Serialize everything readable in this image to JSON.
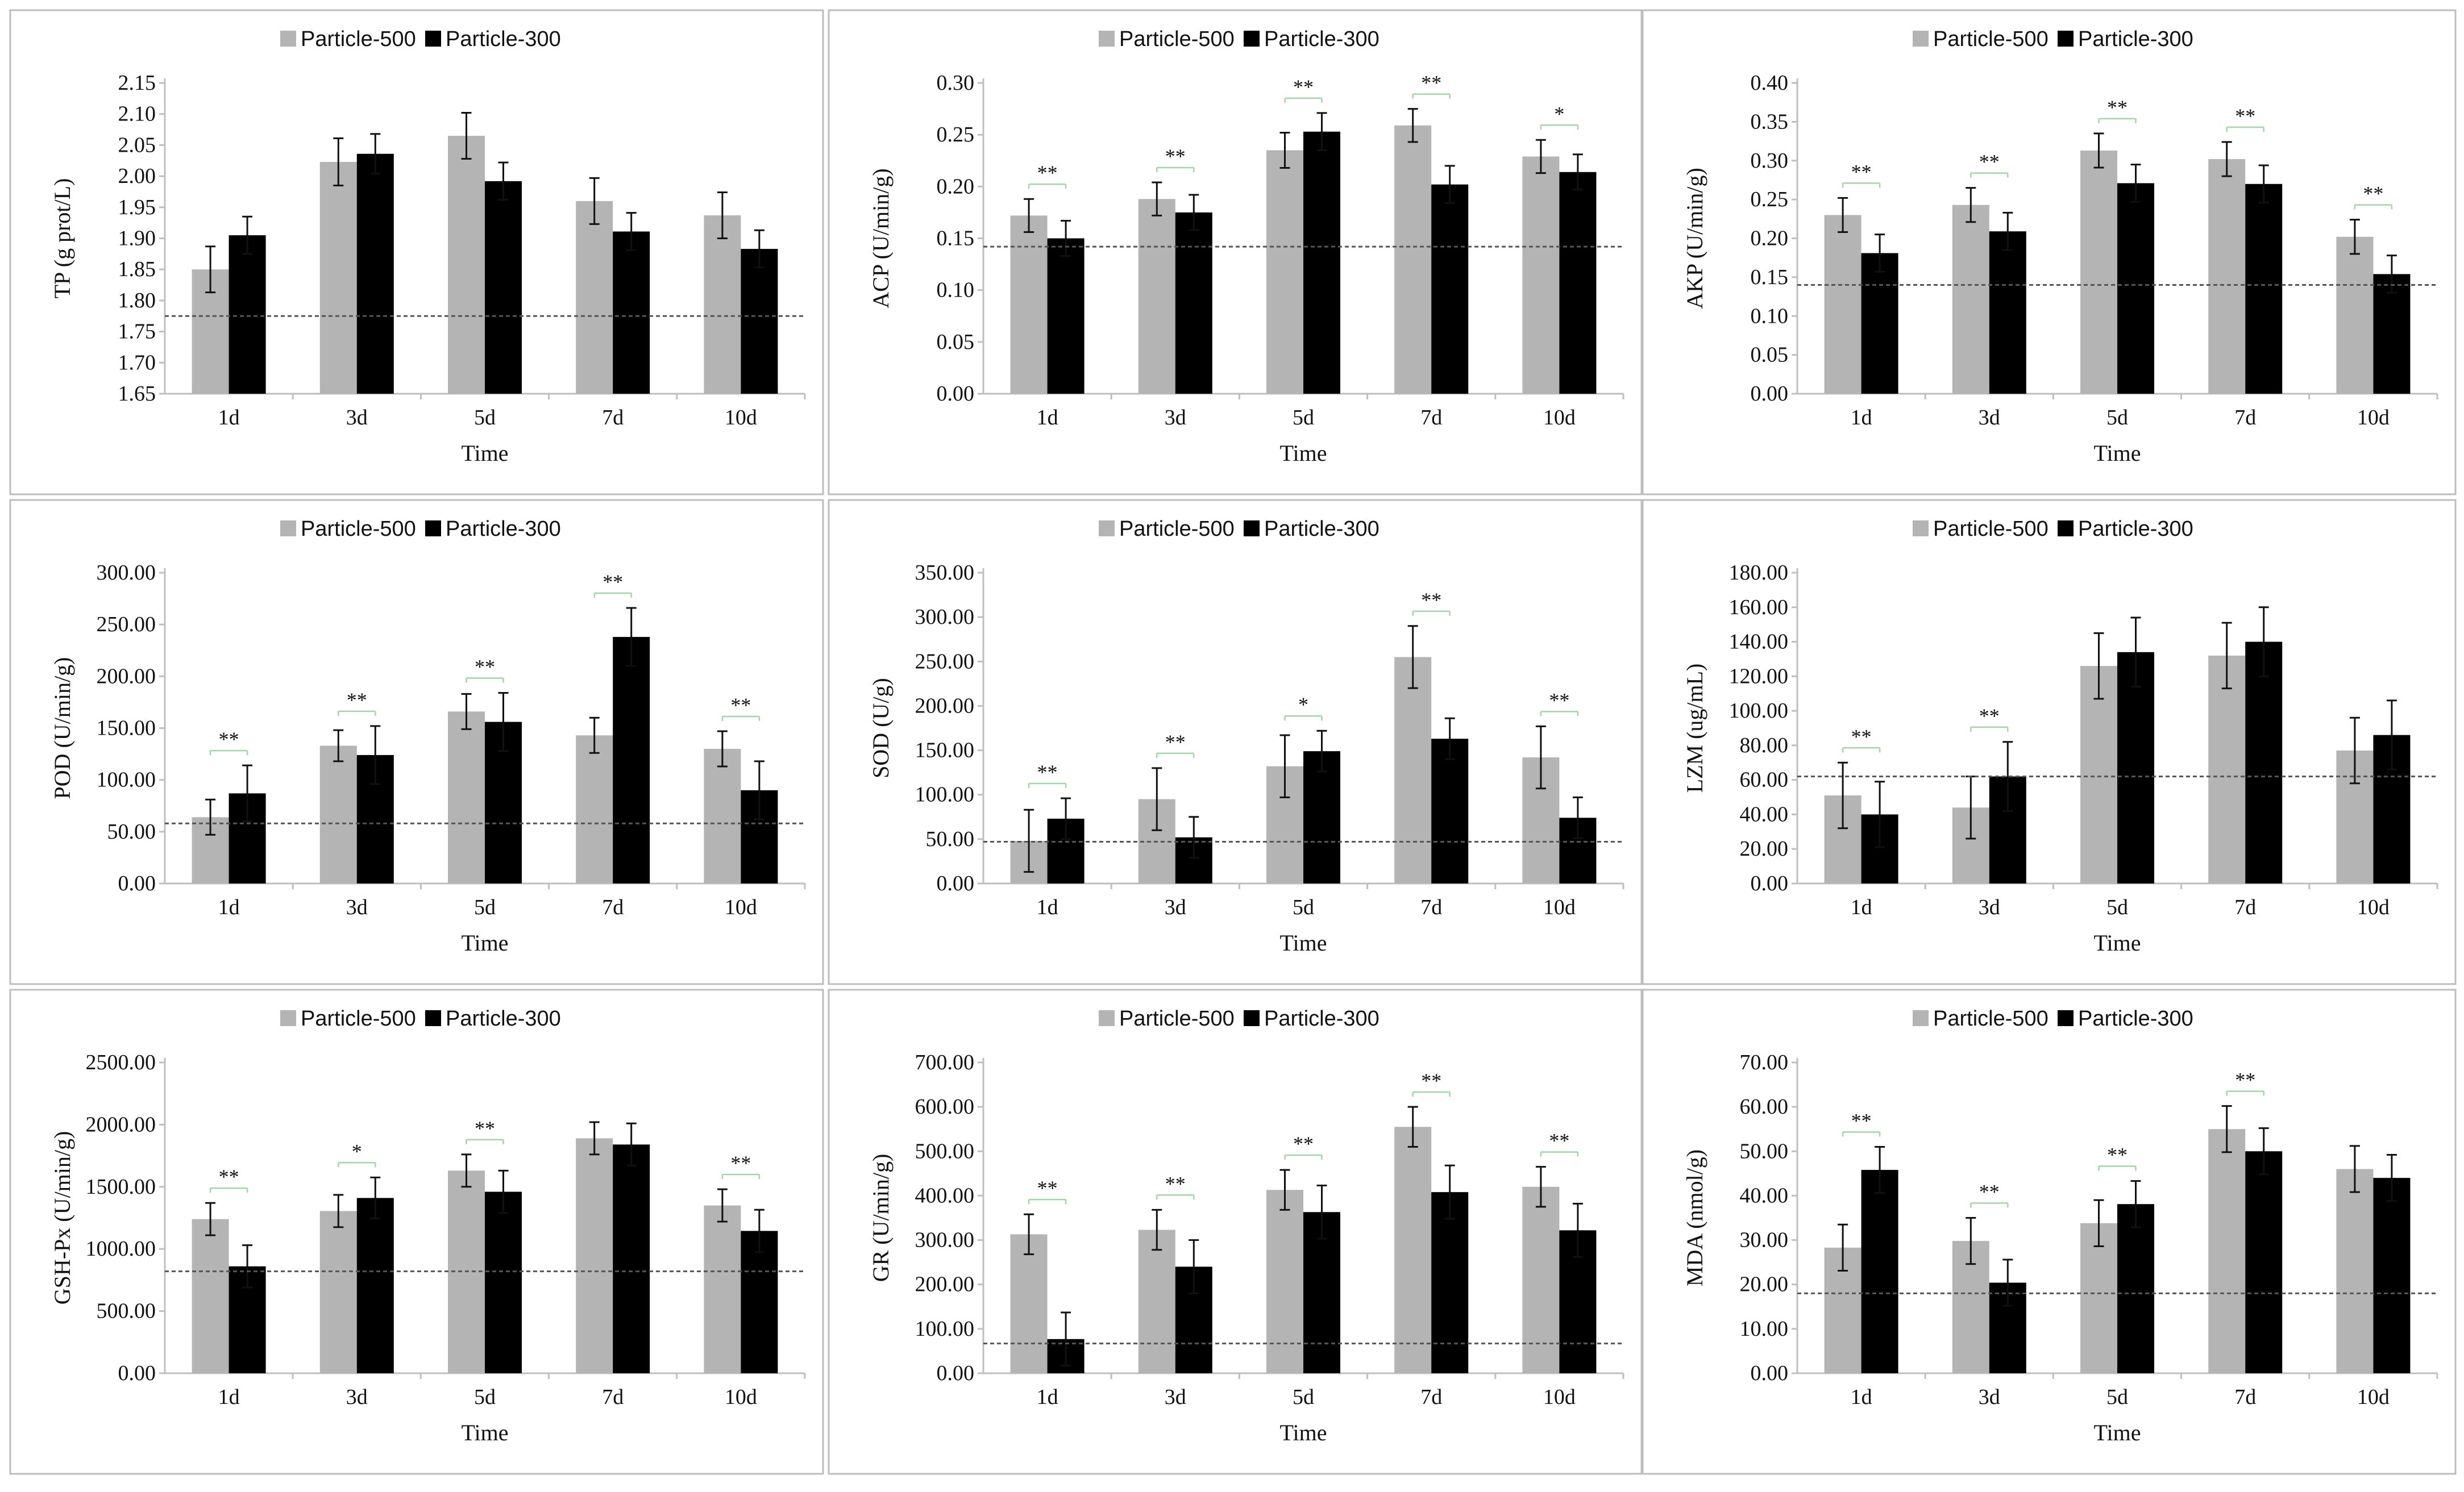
{
  "colors": {
    "series_1": "#b4b4b4",
    "series_2": "#000000",
    "significance": "#9fd8a8",
    "control_line": "#555555"
  },
  "chart_data": [
    {
      "type": "bar",
      "ylabel": "TP (g prot/L)",
      "xlabel": "Time",
      "categories": [
        "1d",
        "3d",
        "5d",
        "7d",
        "10d"
      ],
      "yticks": [
        "1.65",
        "1.70",
        "1.75",
        "1.80",
        "1.85",
        "1.90",
        "1.95",
        "2.00",
        "2.05",
        "2.10",
        "2.15"
      ],
      "ylim": [
        1.65,
        2.15
      ],
      "control": 1.775,
      "series": [
        {
          "name": "Particle-500",
          "values": [
            1.85,
            2.023,
            2.065,
            1.96,
            1.937
          ],
          "errors": [
            0.037,
            0.038,
            0.037,
            0.037,
            0.037
          ]
        },
        {
          "name": "Particle-300",
          "values": [
            1.905,
            2.036,
            1.992,
            1.911,
            1.883
          ],
          "errors": [
            0.03,
            0.032,
            0.03,
            0.03,
            0.03
          ]
        }
      ],
      "significance": [
        "",
        "",
        "",
        "",
        ""
      ]
    },
    {
      "type": "bar",
      "ylabel": "ACP (U/min/g)",
      "xlabel": "Time",
      "categories": [
        "1d",
        "3d",
        "5d",
        "7d",
        "10d"
      ],
      "yticks": [
        "0.00",
        "0.05",
        "0.10",
        "0.15",
        "0.20",
        "0.25",
        "0.30"
      ],
      "ylim": [
        0,
        0.3
      ],
      "control": 0.142,
      "series": [
        {
          "name": "Particle-500",
          "values": [
            0.172,
            0.188,
            0.235,
            0.259,
            0.229
          ],
          "errors": [
            0.016,
            0.016,
            0.017,
            0.016,
            0.016
          ]
        },
        {
          "name": "Particle-300",
          "values": [
            0.15,
            0.175,
            0.253,
            0.202,
            0.214
          ],
          "errors": [
            0.017,
            0.017,
            0.018,
            0.018,
            0.017
          ]
        }
      ],
      "significance": [
        "**",
        "**",
        "**",
        "**",
        "*"
      ]
    },
    {
      "type": "bar",
      "ylabel": "AKP (U/min/g)",
      "xlabel": "Time",
      "categories": [
        "1d",
        "3d",
        "5d",
        "7d",
        "10d"
      ],
      "yticks": [
        "0.00",
        "0.05",
        "0.10",
        "0.15",
        "0.20",
        "0.25",
        "0.30",
        "0.35",
        "0.40"
      ],
      "ylim": [
        0,
        0.4
      ],
      "control": 0.14,
      "series": [
        {
          "name": "Particle-500",
          "values": [
            0.23,
            0.243,
            0.313,
            0.302,
            0.202
          ],
          "errors": [
            0.022,
            0.022,
            0.022,
            0.022,
            0.022
          ]
        },
        {
          "name": "Particle-300",
          "values": [
            0.181,
            0.209,
            0.271,
            0.27,
            0.154
          ],
          "errors": [
            0.024,
            0.024,
            0.024,
            0.024,
            0.024
          ]
        }
      ],
      "significance": [
        "**",
        "**",
        "**",
        "**",
        "**"
      ]
    },
    {
      "type": "bar",
      "ylabel": "POD (U/min/g)",
      "xlabel": "Time",
      "categories": [
        "1d",
        "3d",
        "5d",
        "7d",
        "10d"
      ],
      "yticks": [
        "0.00",
        "50.00",
        "100.00",
        "150.00",
        "200.00",
        "250.00",
        "300.00"
      ],
      "ylim": [
        0,
        300
      ],
      "control": 58,
      "series": [
        {
          "name": "Particle-500",
          "values": [
            64,
            133,
            166,
            143,
            130
          ],
          "errors": [
            17,
            15,
            17,
            17,
            17
          ]
        },
        {
          "name": "Particle-300",
          "values": [
            87,
            124,
            156,
            238,
            90
          ],
          "errors": [
            27,
            28,
            28,
            28,
            28
          ]
        }
      ],
      "significance": [
        "**",
        "**",
        "**",
        "**",
        "**"
      ]
    },
    {
      "type": "bar",
      "ylabel": "SOD (U/g)",
      "xlabel": "Time",
      "categories": [
        "1d",
        "3d",
        "5d",
        "7d",
        "10d"
      ],
      "yticks": [
        "0.00",
        "50.00",
        "100.00",
        "150.00",
        "200.00",
        "250.00",
        "300.00",
        "350.00"
      ],
      "ylim": [
        0,
        350
      ],
      "control": 47,
      "series": [
        {
          "name": "Particle-500",
          "values": [
            48,
            95,
            132,
            255,
            142
          ],
          "errors": [
            35,
            35,
            35,
            35,
            35
          ]
        },
        {
          "name": "Particle-300",
          "values": [
            73,
            52,
            149,
            163,
            74
          ],
          "errors": [
            23,
            23,
            23,
            23,
            23
          ]
        }
      ],
      "significance": [
        "**",
        "**",
        "*",
        "**",
        "**"
      ]
    },
    {
      "type": "bar",
      "ylabel": "LZM (ug/mL)",
      "xlabel": "Time",
      "categories": [
        "1d",
        "3d",
        "5d",
        "7d",
        "10d"
      ],
      "yticks": [
        "0.00",
        "20.00",
        "40.00",
        "60.00",
        "80.00",
        "100.00",
        "120.00",
        "140.00",
        "160.00",
        "180.00"
      ],
      "ylim": [
        0,
        180
      ],
      "control": 62,
      "series": [
        {
          "name": "Particle-500",
          "values": [
            51,
            44,
            126,
            132,
            77
          ],
          "errors": [
            19,
            18,
            19,
            19,
            19
          ]
        },
        {
          "name": "Particle-300",
          "values": [
            40,
            62,
            134,
            140,
            86
          ],
          "errors": [
            19,
            20,
            20,
            20,
            20
          ]
        }
      ],
      "significance": [
        "**",
        "**",
        "",
        "",
        ""
      ]
    },
    {
      "type": "bar",
      "ylabel": "GSH-Px (U/min/g)",
      "xlabel": "Time",
      "categories": [
        "1d",
        "3d",
        "5d",
        "7d",
        "10d"
      ],
      "yticks": [
        "0.00",
        "500.00",
        "1000.00",
        "1500.00",
        "2000.00",
        "2500.00"
      ],
      "ylim": [
        0,
        2500
      ],
      "control": 820,
      "series": [
        {
          "name": "Particle-500",
          "values": [
            1240,
            1305,
            1630,
            1890,
            1350
          ],
          "errors": [
            130,
            130,
            130,
            130,
            130
          ]
        },
        {
          "name": "Particle-300",
          "values": [
            860,
            1410,
            1460,
            1840,
            1145
          ],
          "errors": [
            170,
            165,
            170,
            170,
            170
          ]
        }
      ],
      "significance": [
        "**",
        "*",
        "**",
        "",
        "**"
      ]
    },
    {
      "type": "bar",
      "ylabel": "GR (U/min/g)",
      "xlabel": "Time",
      "categories": [
        "1d",
        "3d",
        "5d",
        "7d",
        "10d"
      ],
      "yticks": [
        "0.00",
        "100.00",
        "200.00",
        "300.00",
        "400.00",
        "500.00",
        "600.00",
        "700.00"
      ],
      "ylim": [
        0,
        700
      ],
      "control": 67,
      "series": [
        {
          "name": "Particle-500",
          "values": [
            313,
            323,
            413,
            555,
            420
          ],
          "errors": [
            45,
            45,
            45,
            45,
            45
          ]
        },
        {
          "name": "Particle-300",
          "values": [
            77,
            240,
            363,
            408,
            322
          ],
          "errors": [
            60,
            60,
            60,
            60,
            60
          ]
        }
      ],
      "significance": [
        "**",
        "**",
        "**",
        "**",
        "**"
      ]
    },
    {
      "type": "bar",
      "ylabel": "MDA (nmol/g)",
      "xlabel": "Time",
      "categories": [
        "1d",
        "3d",
        "5d",
        "7d",
        "10d"
      ],
      "yticks": [
        "0.00",
        "10.00",
        "20.00",
        "30.00",
        "40.00",
        "50.00",
        "60.00",
        "70.00"
      ],
      "ylim": [
        0,
        70
      ],
      "control": 18,
      "series": [
        {
          "name": "Particle-500",
          "values": [
            28.3,
            29.8,
            33.8,
            55,
            46
          ],
          "errors": [
            5.2,
            5.2,
            5.2,
            5.2,
            5.2
          ]
        },
        {
          "name": "Particle-300",
          "values": [
            45.8,
            20.4,
            38.1,
            50,
            44
          ],
          "errors": [
            5.2,
            5.2,
            5.2,
            5.2,
            5.2
          ]
        }
      ],
      "significance": [
        "**",
        "**",
        "**",
        "**",
        ""
      ]
    }
  ]
}
